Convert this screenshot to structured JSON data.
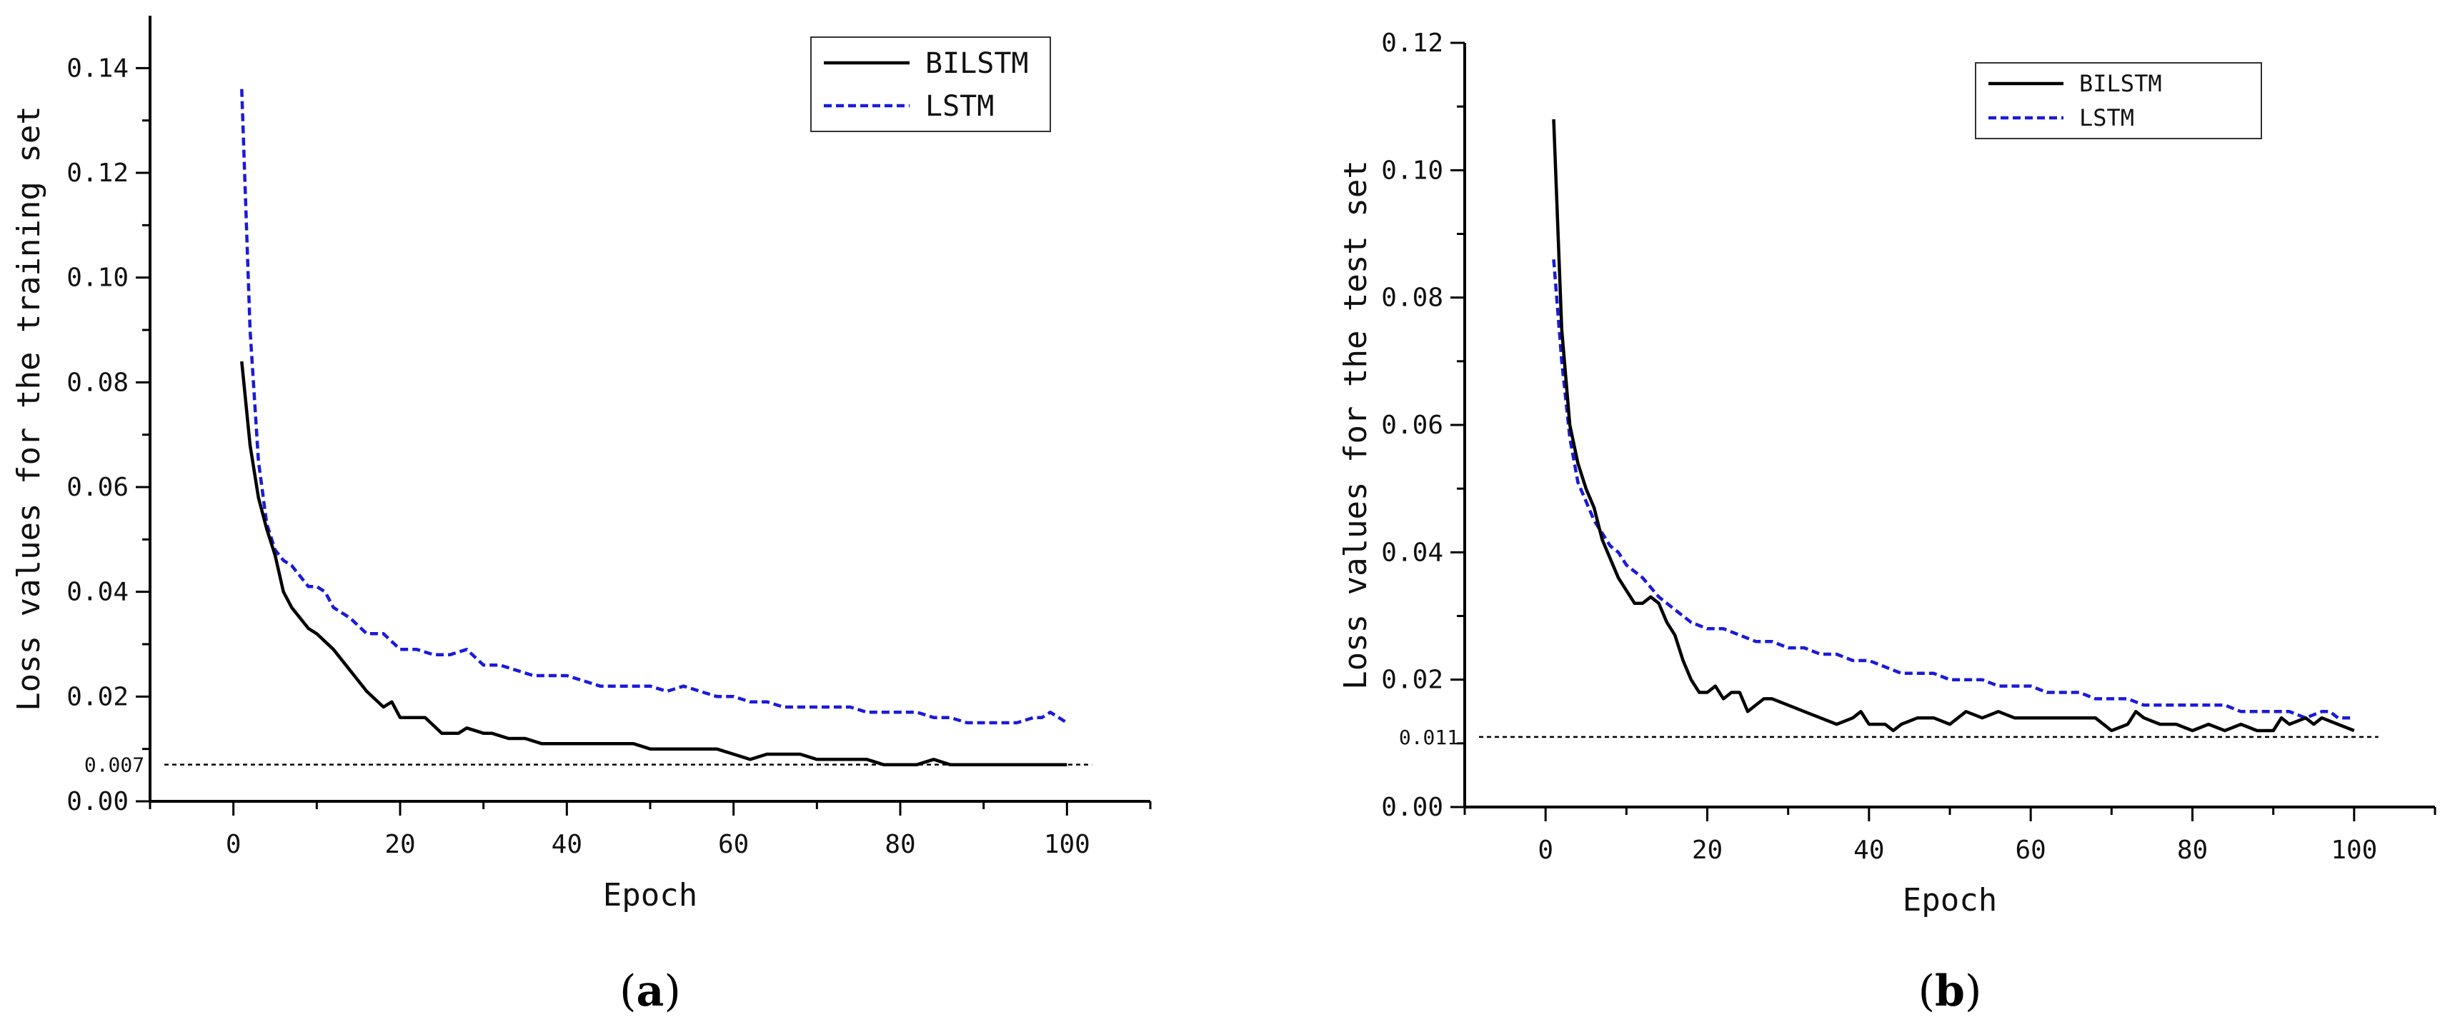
{
  "colors": {
    "bilstm": "#000000",
    "lstm": "#1a1adb",
    "axis": "#000000"
  },
  "chart_data": [
    {
      "type": "line",
      "panel_label": "(a)",
      "panel_letter": "a",
      "xlabel": "Epoch",
      "ylabel": "Loss values for the training set",
      "xlim": [
        -10,
        110
      ],
      "ylim": [
        0,
        0.15
      ],
      "xticks": [
        0,
        20,
        40,
        60,
        80,
        100
      ],
      "xtick_labels": [
        "0",
        "20",
        "40",
        "60",
        "80",
        "100"
      ],
      "yticks": [
        0.0,
        0.02,
        0.04,
        0.06,
        0.08,
        0.1,
        0.12,
        0.14
      ],
      "ytick_labels": [
        "0.00",
        "0.02",
        "0.04",
        "0.06",
        "0.08",
        "0.10",
        "0.12",
        "0.14"
      ],
      "legend_position": "top-right",
      "reference_line": {
        "value": 0.007,
        "label": "0.007"
      },
      "series": [
        {
          "name": "BILSTM",
          "style": "solid",
          "x": [
            1,
            2,
            3,
            4,
            5,
            6,
            7,
            8,
            9,
            10,
            12,
            14,
            16,
            18,
            19,
            20,
            22,
            23,
            25,
            27,
            28,
            30,
            31,
            33,
            35,
            37,
            38,
            40,
            42,
            44,
            46,
            48,
            50,
            52,
            54,
            56,
            58,
            60,
            62,
            64,
            66,
            68,
            70,
            72,
            74,
            76,
            78,
            80,
            82,
            84,
            86,
            88,
            90,
            92,
            94,
            96,
            98,
            100
          ],
          "values": [
            0.084,
            0.068,
            0.058,
            0.052,
            0.047,
            0.04,
            0.037,
            0.035,
            0.033,
            0.032,
            0.029,
            0.025,
            0.021,
            0.018,
            0.019,
            0.016,
            0.016,
            0.016,
            0.013,
            0.013,
            0.014,
            0.013,
            0.013,
            0.012,
            0.012,
            0.011,
            0.011,
            0.011,
            0.011,
            0.011,
            0.011,
            0.011,
            0.01,
            0.01,
            0.01,
            0.01,
            0.01,
            0.009,
            0.008,
            0.009,
            0.009,
            0.009,
            0.008,
            0.008,
            0.008,
            0.008,
            0.007,
            0.007,
            0.007,
            0.008,
            0.007,
            0.007,
            0.007,
            0.007,
            0.007,
            0.007,
            0.007,
            0.007
          ]
        },
        {
          "name": "LSTM",
          "style": "dashed",
          "x": [
            1,
            2,
            3,
            4,
            5,
            6,
            7,
            8,
            9,
            10,
            11,
            12,
            14,
            16,
            18,
            20,
            22,
            24,
            26,
            28,
            30,
            32,
            34,
            36,
            38,
            40,
            42,
            44,
            46,
            48,
            50,
            52,
            54,
            56,
            58,
            60,
            62,
            64,
            66,
            68,
            70,
            72,
            74,
            76,
            78,
            80,
            82,
            84,
            86,
            88,
            90,
            92,
            94,
            96,
            97,
            98,
            100
          ],
          "values": [
            0.136,
            0.09,
            0.065,
            0.053,
            0.048,
            0.046,
            0.045,
            0.043,
            0.041,
            0.041,
            0.04,
            0.037,
            0.035,
            0.032,
            0.032,
            0.029,
            0.029,
            0.028,
            0.028,
            0.029,
            0.026,
            0.026,
            0.025,
            0.024,
            0.024,
            0.024,
            0.023,
            0.022,
            0.022,
            0.022,
            0.022,
            0.021,
            0.022,
            0.021,
            0.02,
            0.02,
            0.019,
            0.019,
            0.018,
            0.018,
            0.018,
            0.018,
            0.018,
            0.017,
            0.017,
            0.017,
            0.017,
            0.016,
            0.016,
            0.015,
            0.015,
            0.015,
            0.015,
            0.016,
            0.016,
            0.017,
            0.015
          ]
        }
      ]
    },
    {
      "type": "line",
      "panel_label": "(b)",
      "panel_letter": "b",
      "xlabel": "Epoch",
      "ylabel": "Loss values for the test set",
      "xlim": [
        -10,
        110
      ],
      "ylim": [
        0,
        0.12
      ],
      "xticks": [
        0,
        20,
        40,
        60,
        80,
        100
      ],
      "xtick_labels": [
        "0",
        "20",
        "40",
        "60",
        "80",
        "100"
      ],
      "yticks": [
        0.0,
        0.02,
        0.04,
        0.06,
        0.08,
        0.1,
        0.12
      ],
      "ytick_labels": [
        "0.00",
        "0.02",
        "0.04",
        "0.06",
        "0.08",
        "0.10",
        "0.12"
      ],
      "legend_position": "top-right",
      "reference_line": {
        "value": 0.011,
        "label": "0.011"
      },
      "series": [
        {
          "name": "BILSTM",
          "style": "solid",
          "x": [
            1,
            2,
            3,
            4,
            5,
            6,
            7,
            8,
            9,
            10,
            11,
            12,
            13,
            14,
            15,
            16,
            17,
            18,
            19,
            20,
            21,
            22,
            23,
            24,
            25,
            26,
            27,
            28,
            30,
            32,
            34,
            36,
            38,
            39,
            40,
            42,
            43,
            44,
            46,
            48,
            50,
            52,
            54,
            56,
            58,
            60,
            62,
            64,
            66,
            68,
            70,
            72,
            73,
            74,
            76,
            78,
            80,
            82,
            84,
            86,
            88,
            90,
            91,
            92,
            94,
            95,
            96,
            98,
            100
          ],
          "values": [
            0.108,
            0.075,
            0.06,
            0.054,
            0.05,
            0.047,
            0.042,
            0.039,
            0.036,
            0.034,
            0.032,
            0.032,
            0.033,
            0.032,
            0.029,
            0.027,
            0.023,
            0.02,
            0.018,
            0.018,
            0.019,
            0.017,
            0.018,
            0.018,
            0.015,
            0.016,
            0.017,
            0.017,
            0.016,
            0.015,
            0.014,
            0.013,
            0.014,
            0.015,
            0.013,
            0.013,
            0.012,
            0.013,
            0.014,
            0.014,
            0.013,
            0.015,
            0.014,
            0.015,
            0.014,
            0.014,
            0.014,
            0.014,
            0.014,
            0.014,
            0.012,
            0.013,
            0.015,
            0.014,
            0.013,
            0.013,
            0.012,
            0.013,
            0.012,
            0.013,
            0.012,
            0.012,
            0.014,
            0.013,
            0.014,
            0.013,
            0.014,
            0.013,
            0.012
          ]
        },
        {
          "name": "LSTM",
          "style": "dashed",
          "x": [
            1,
            2,
            3,
            4,
            5,
            6,
            7,
            8,
            9,
            10,
            12,
            14,
            16,
            18,
            20,
            22,
            24,
            26,
            28,
            30,
            32,
            34,
            36,
            38,
            40,
            42,
            44,
            46,
            48,
            50,
            52,
            54,
            56,
            58,
            60,
            62,
            64,
            66,
            68,
            70,
            72,
            74,
            76,
            78,
            80,
            82,
            84,
            86,
            88,
            90,
            92,
            94,
            96,
            97,
            98,
            100
          ],
          "values": [
            0.086,
            0.07,
            0.058,
            0.051,
            0.048,
            0.045,
            0.043,
            0.041,
            0.04,
            0.038,
            0.036,
            0.033,
            0.031,
            0.029,
            0.028,
            0.028,
            0.027,
            0.026,
            0.026,
            0.025,
            0.025,
            0.024,
            0.024,
            0.023,
            0.023,
            0.022,
            0.021,
            0.021,
            0.021,
            0.02,
            0.02,
            0.02,
            0.019,
            0.019,
            0.019,
            0.018,
            0.018,
            0.018,
            0.017,
            0.017,
            0.017,
            0.016,
            0.016,
            0.016,
            0.016,
            0.016,
            0.016,
            0.015,
            0.015,
            0.015,
            0.015,
            0.014,
            0.015,
            0.015,
            0.014,
            0.014
          ]
        }
      ]
    }
  ]
}
